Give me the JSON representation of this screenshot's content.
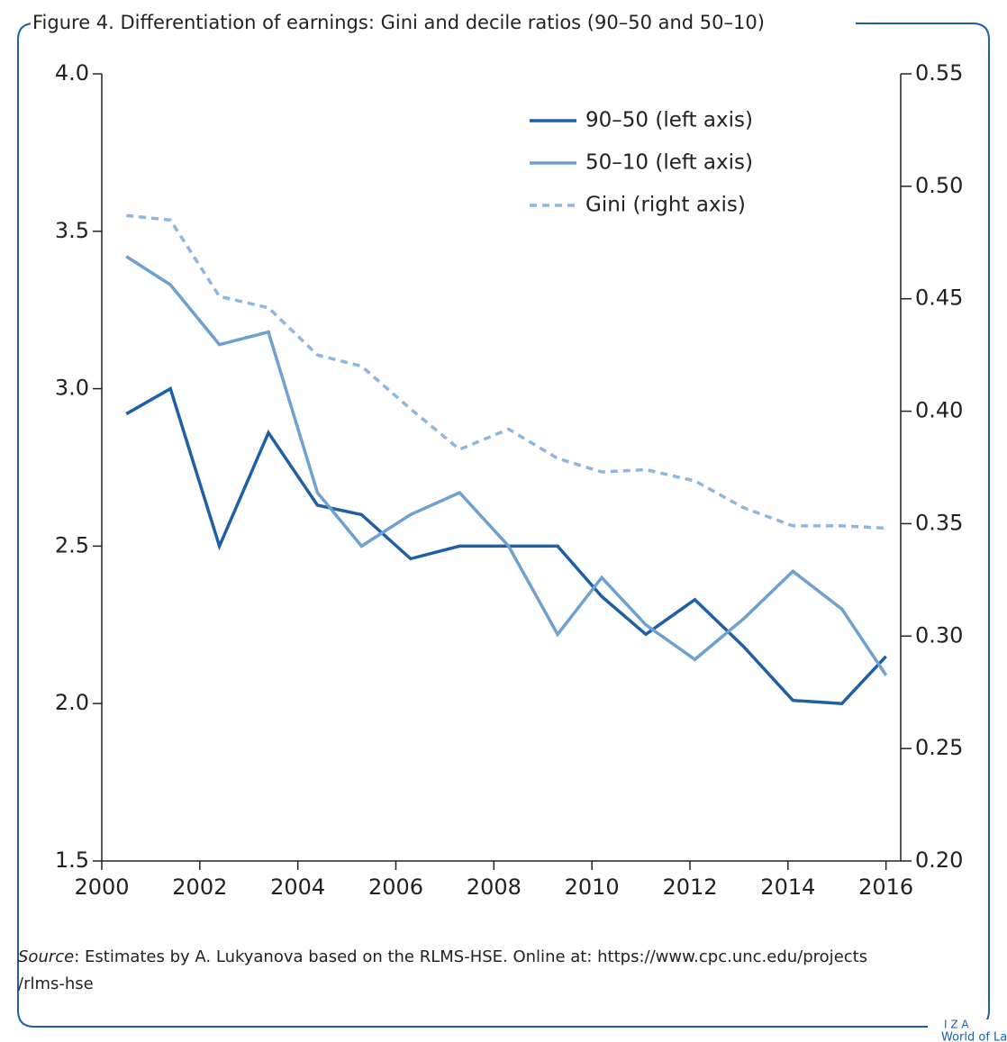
{
  "chart_data": {
    "type": "line",
    "title": "Figure 4. Differentiation of earnings: Gini and decile ratios (90–50 and 50–10)",
    "x": [
      2000.5,
      2001.4,
      2002.4,
      2003.4,
      2004.4,
      2005.3,
      2006.3,
      2007.3,
      2008.3,
      2009.3,
      2010.2,
      2011.1,
      2012.1,
      2013.1,
      2014.1,
      2015.1,
      2016.0
    ],
    "xlim": [
      2000,
      2016.3
    ],
    "xticks": [
      2000,
      2002,
      2004,
      2006,
      2008,
      2010,
      2012,
      2014,
      2016
    ],
    "ylim": [
      1.5,
      4.0
    ],
    "yticks": [
      {
        "value": 1.5,
        "label": "1.5"
      },
      {
        "value": 2.0,
        "label": "2.0"
      },
      {
        "value": 2.5,
        "label": "2.5"
      },
      {
        "value": 3.0,
        "label": "3.0"
      },
      {
        "value": 3.5,
        "label": "3.5"
      },
      {
        "value": 4.0,
        "label": "4.0"
      }
    ],
    "y2lim": [
      0.2,
      0.55
    ],
    "y2ticks": [
      {
        "value": 0.2,
        "label": "0.20"
      },
      {
        "value": 0.25,
        "label": "0.25"
      },
      {
        "value": 0.3,
        "label": "0.30"
      },
      {
        "value": 0.35,
        "label": "0.35"
      },
      {
        "value": 0.4,
        "label": "0.40"
      },
      {
        "value": 0.45,
        "label": "0.45"
      },
      {
        "value": 0.5,
        "label": "0.50"
      },
      {
        "value": 0.55,
        "label": "0.55"
      }
    ],
    "legend": "upper right",
    "series": [
      {
        "name": "90–50 (left axis)",
        "color": "#1f5fa6",
        "dashed": false,
        "axis": "y",
        "values": [
          2.92,
          3.0,
          2.5,
          2.86,
          2.63,
          2.6,
          2.46,
          2.5,
          2.5,
          2.5,
          2.34,
          2.22,
          2.33,
          2.18,
          2.01,
          2.0,
          2.15
        ]
      },
      {
        "name": "50–10 (left axis)",
        "color": "#6fa0cf",
        "dashed": false,
        "axis": "y",
        "values": [
          3.42,
          3.33,
          3.14,
          3.18,
          2.67,
          2.5,
          2.6,
          2.67,
          2.5,
          2.22,
          2.4,
          2.25,
          2.14,
          2.27,
          2.42,
          2.3,
          2.09
        ]
      },
      {
        "name": "Gini (right axis)",
        "color": "#8fb6dc",
        "dashed": true,
        "axis": "y2",
        "values": [
          0.487,
          0.485,
          0.451,
          0.446,
          0.425,
          0.42,
          0.401,
          0.383,
          0.392,
          0.379,
          0.373,
          0.374,
          0.369,
          0.357,
          0.349,
          0.349,
          0.348
        ]
      }
    ],
    "source_label": "Source",
    "source_text": ": Estimates by A. Lukyanova based on the RLMS-HSE. Online at: https://www.cpc.unc.edu/projects",
    "source_text_2": "/rlms-hse",
    "logo_top": "I Z A",
    "logo_bottom": "World of Labor"
  }
}
